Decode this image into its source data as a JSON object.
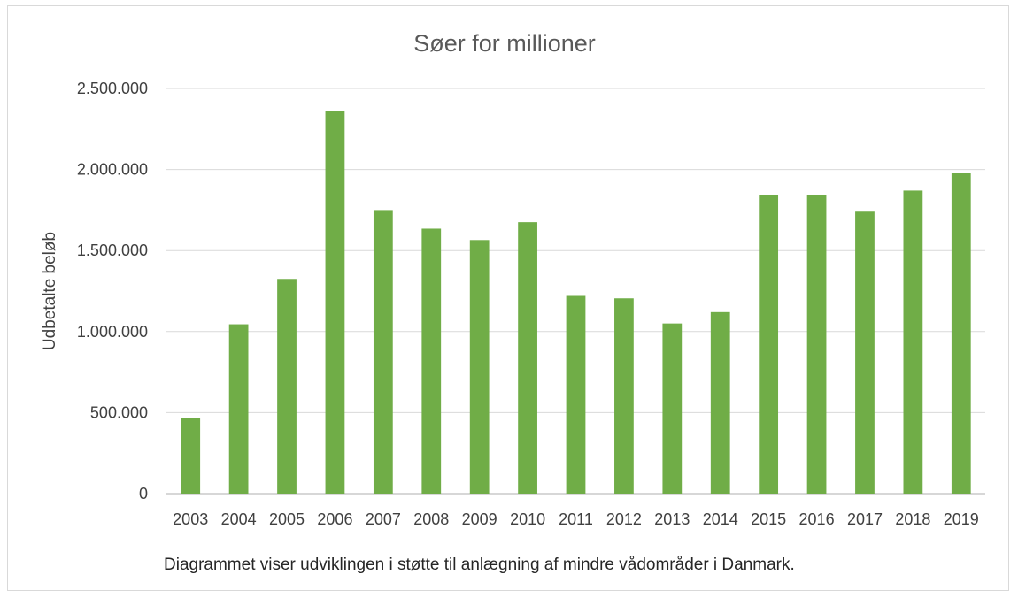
{
  "chart_data": {
    "type": "bar",
    "title": "Søer for millioner",
    "xlabel": "",
    "ylabel": "Udbetalte beløb",
    "caption": "Diagrammet viser udviklingen i støtte til anlægning af mindre vådområder i Danmark.",
    "categories": [
      "2003",
      "2004",
      "2005",
      "2006",
      "2007",
      "2008",
      "2009",
      "2010",
      "2011",
      "2012",
      "2013",
      "2014",
      "2015",
      "2016",
      "2017",
      "2018",
      "2019"
    ],
    "values": [
      465000,
      1045000,
      1325000,
      2360000,
      1750000,
      1635000,
      1565000,
      1675000,
      1220000,
      1205000,
      1050000,
      1120000,
      1845000,
      1845000,
      1740000,
      1870000,
      1980000
    ],
    "ylim": [
      0,
      2500000
    ],
    "yticks": [
      0,
      500000,
      1000000,
      1500000,
      2000000,
      2500000
    ],
    "ytick_labels": [
      "0",
      "500.000",
      "1.000.000",
      "1.500.000",
      "2.000.000",
      "2.500.000"
    ],
    "grid": true,
    "legend": "none",
    "bar_color": "#70ad47"
  }
}
